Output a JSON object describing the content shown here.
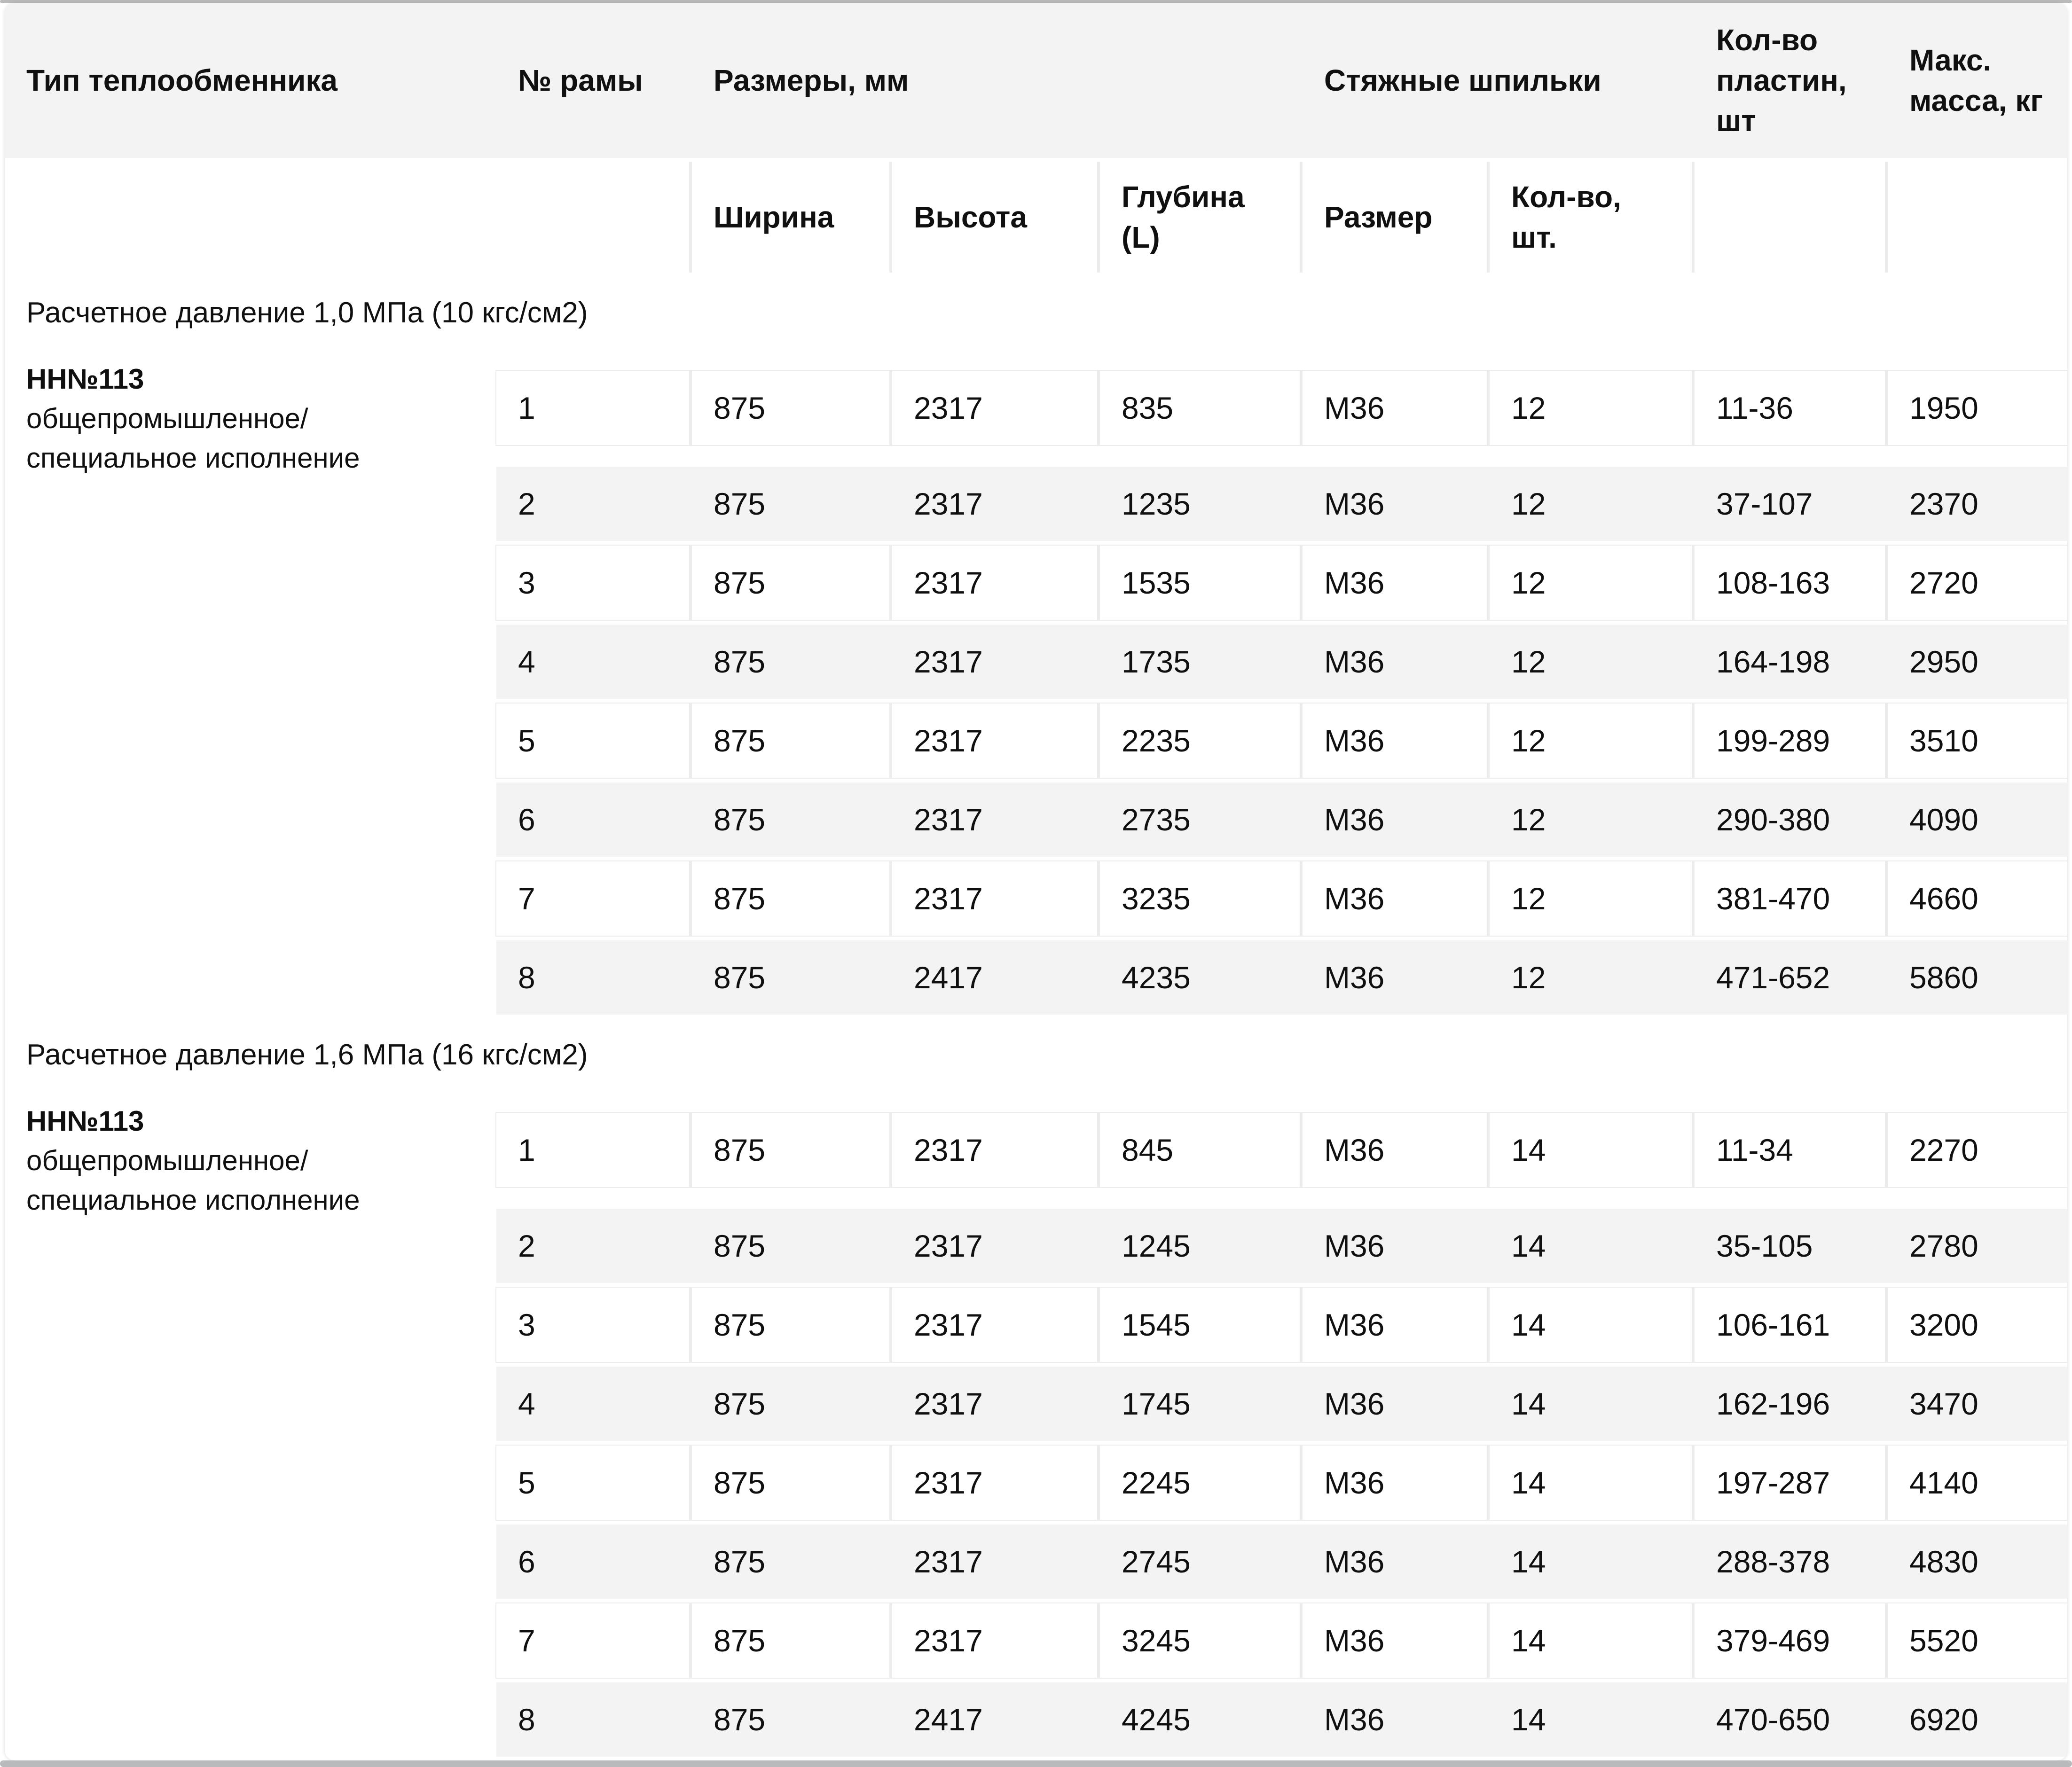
{
  "colors": {
    "header_gray": "#f3f3f4",
    "stripe_gray": "#f3f3f4",
    "gap_gray": "#ececec",
    "scrollbar_gray": "#b9babc",
    "text": "#101010",
    "background": "#ffffff"
  },
  "table": {
    "columns": {
      "type": "Тип теплообменника",
      "frame": "№ рамы",
      "dimensions_group": "Размеры, мм",
      "studs_group": "Стяжные шпильки",
      "plates": [
        "Кол-во",
        "пластин,",
        "шт"
      ],
      "mass": [
        "Макс.",
        "масса, кг"
      ],
      "sub": {
        "width": "Ширина",
        "height": "Высота",
        "depth": [
          "Глубина",
          "(L)"
        ],
        "stud_size": "Размер",
        "stud_qty": [
          "Кол-во,",
          "шт."
        ]
      }
    },
    "sections": [
      {
        "title": "Расчетное давление 1,0 МПа (10 кгс/см2)",
        "type_name": "НН№113",
        "type_desc": [
          "общепромышленное/",
          "специальное исполнение"
        ],
        "rows": [
          {
            "frame": "1",
            "width": "875",
            "height": "2317",
            "depth": "835",
            "stud_size": "М36",
            "stud_qty": "12",
            "plates": "11-36",
            "mass": "1950"
          },
          {
            "frame": "2",
            "width": "875",
            "height": "2317",
            "depth": "1235",
            "stud_size": "М36",
            "stud_qty": "12",
            "plates": "37-107",
            "mass": "2370"
          },
          {
            "frame": "3",
            "width": "875",
            "height": "2317",
            "depth": "1535",
            "stud_size": "М36",
            "stud_qty": "12",
            "plates": "108-163",
            "mass": "2720"
          },
          {
            "frame": "4",
            "width": "875",
            "height": "2317",
            "depth": "1735",
            "stud_size": "М36",
            "stud_qty": "12",
            "plates": "164-198",
            "mass": "2950"
          },
          {
            "frame": "5",
            "width": "875",
            "height": "2317",
            "depth": "2235",
            "stud_size": "М36",
            "stud_qty": "12",
            "plates": "199-289",
            "mass": "3510"
          },
          {
            "frame": "6",
            "width": "875",
            "height": "2317",
            "depth": "2735",
            "stud_size": "М36",
            "stud_qty": "12",
            "plates": "290-380",
            "mass": "4090"
          },
          {
            "frame": "7",
            "width": "875",
            "height": "2317",
            "depth": "3235",
            "stud_size": "М36",
            "stud_qty": "12",
            "plates": "381-470",
            "mass": "4660"
          },
          {
            "frame": "8",
            "width": "875",
            "height": "2417",
            "depth": "4235",
            "stud_size": "М36",
            "stud_qty": "12",
            "plates": "471-652",
            "mass": "5860"
          }
        ]
      },
      {
        "title": "Расчетное давление 1,6 МПа (16 кгс/см2)",
        "type_name": "НН№113",
        "type_desc": [
          "общепромышленное/",
          "специальное исполнение"
        ],
        "rows": [
          {
            "frame": "1",
            "width": "875",
            "height": "2317",
            "depth": "845",
            "stud_size": "М36",
            "stud_qty": "14",
            "plates": "11-34",
            "mass": "2270"
          },
          {
            "frame": "2",
            "width": "875",
            "height": "2317",
            "depth": "1245",
            "stud_size": "М36",
            "stud_qty": "14",
            "plates": "35-105",
            "mass": "2780"
          },
          {
            "frame": "3",
            "width": "875",
            "height": "2317",
            "depth": "1545",
            "stud_size": "М36",
            "stud_qty": "14",
            "plates": "106-161",
            "mass": "3200"
          },
          {
            "frame": "4",
            "width": "875",
            "height": "2317",
            "depth": "1745",
            "stud_size": "М36",
            "stud_qty": "14",
            "plates": "162-196",
            "mass": "3470"
          },
          {
            "frame": "5",
            "width": "875",
            "height": "2317",
            "depth": "2245",
            "stud_size": "М36",
            "stud_qty": "14",
            "plates": "197-287",
            "mass": "4140"
          },
          {
            "frame": "6",
            "width": "875",
            "height": "2317",
            "depth": "2745",
            "stud_size": "М36",
            "stud_qty": "14",
            "plates": "288-378",
            "mass": "4830"
          },
          {
            "frame": "7",
            "width": "875",
            "height": "2317",
            "depth": "3245",
            "stud_size": "М36",
            "stud_qty": "14",
            "plates": "379-469",
            "mass": "5520"
          },
          {
            "frame": "8",
            "width": "875",
            "height": "2417",
            "depth": "4245",
            "stud_size": "М36",
            "stud_qty": "14",
            "plates": "470-650",
            "mass": "6920"
          }
        ]
      }
    ]
  }
}
